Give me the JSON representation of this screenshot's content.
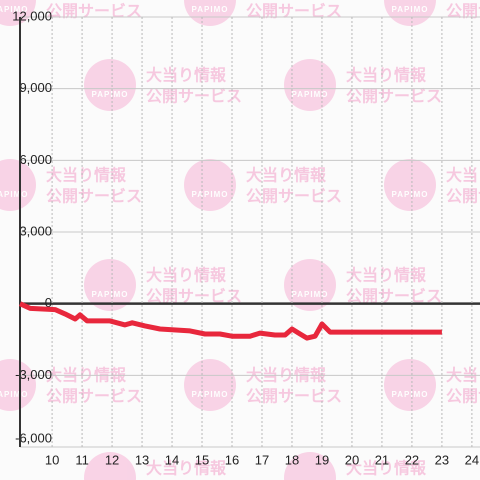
{
  "chart_data": {
    "type": "line",
    "watermark": {
      "logo": "PAPIMO",
      "line1": "大当り情報",
      "line2": "公開サービス"
    },
    "x": [
      8.93,
      9.27,
      10.1,
      10.43,
      10.77,
      10.93,
      11.17,
      11.93,
      12.43,
      12.67,
      13.1,
      13.6,
      14.6,
      15.1,
      15.6,
      16,
      16.6,
      16.93,
      17.43,
      17.77,
      18,
      18.27,
      18.5,
      18.77,
      19,
      19.27,
      23
    ],
    "series": [
      {
        "color": "#e8273c",
        "values": [
          0,
          -200,
          -250,
          -430,
          -640,
          -470,
          -720,
          -720,
          -890,
          -800,
          -930,
          -1060,
          -1140,
          -1270,
          -1270,
          -1360,
          -1360,
          -1230,
          -1310,
          -1310,
          -1060,
          -1270,
          -1440,
          -1360,
          -850,
          -1190,
          -1190
        ]
      }
    ],
    "xlim": [
      8.93,
      24.27
    ],
    "xticks": [
      10,
      11,
      12,
      13,
      14,
      15,
      16,
      17,
      18,
      19,
      20,
      21,
      22,
      23,
      24
    ],
    "ylim": [
      -6000,
      12000
    ],
    "yticks": [
      {
        "value": -6000,
        "label": "-6,000"
      },
      {
        "value": -3000,
        "label": "-3,000"
      },
      0,
      {
        "value": 3000,
        "label": "3,000"
      },
      {
        "value": 6000,
        "label": "6,000"
      },
      {
        "value": 9000,
        "label": "9,000"
      },
      {
        "value": 12000,
        "label": "12,000"
      }
    ],
    "grid": true
  }
}
